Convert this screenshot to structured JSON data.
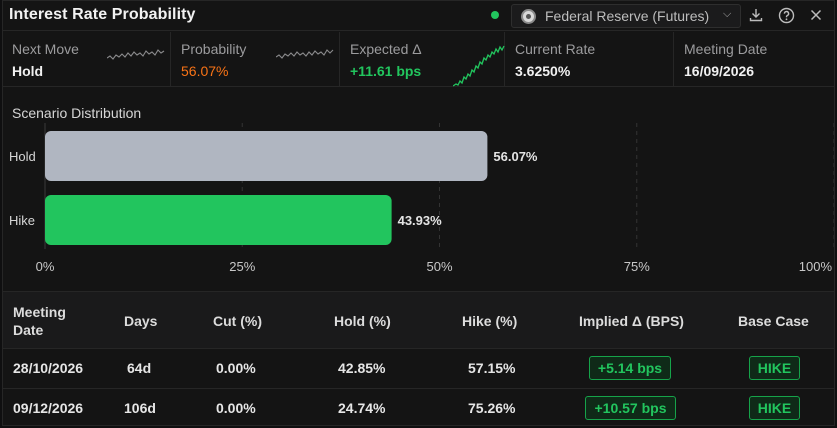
{
  "header": {
    "title": "Interest Rate Probability",
    "source": "Federal Reserve (Futures)"
  },
  "metrics": [
    {
      "label": "Next Move",
      "value": "Hold"
    },
    {
      "label": "Probability",
      "value": "56.07%"
    },
    {
      "label": "Expected Δ",
      "value": "+11.61 bps"
    },
    {
      "label": "Current Rate",
      "value": "3.6250%"
    },
    {
      "label": "Meeting Date",
      "value": "16/09/2026"
    }
  ],
  "chart_data": {
    "type": "bar",
    "orientation": "horizontal",
    "title": "Scenario Distribution",
    "categories": [
      "Hold",
      "Hike"
    ],
    "values": [
      56.07,
      43.93
    ],
    "value_labels": [
      "56.07%",
      "43.93%"
    ],
    "colors": [
      "#b0b6c1",
      "#22c55e"
    ],
    "xlim": [
      0,
      100
    ],
    "x_ticks": [
      "0%",
      "25%",
      "50%",
      "75%",
      "100%"
    ],
    "grid": true
  },
  "table": {
    "headers": [
      "Meeting Date",
      "Days",
      "Cut (%)",
      "Hold (%)",
      "Hike (%)",
      "Implied Δ (BPS)",
      "Base Case"
    ],
    "rows": [
      [
        "28/10/2026",
        "64d",
        "0.00%",
        "42.85%",
        "57.15%",
        "+5.14 bps",
        "HIKE"
      ],
      [
        "09/12/2026",
        "106d",
        "0.00%",
        "24.74%",
        "75.26%",
        "+10.57 bps",
        "HIKE"
      ]
    ]
  },
  "colors": {
    "accent_green": "#22c55e",
    "accent_orange": "#f97316",
    "hold_bar": "#b0b6c1"
  }
}
